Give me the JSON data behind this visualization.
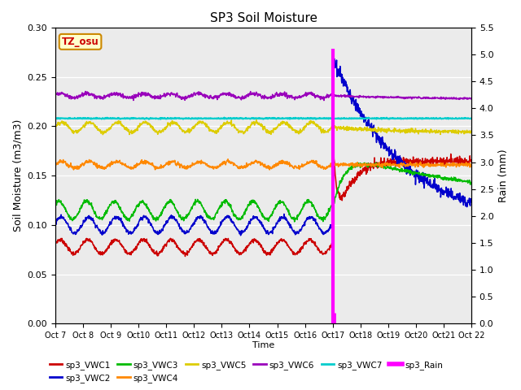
{
  "title": "SP3 Soil Moisture",
  "ylabel_left": "Soil Moisture (m3/m3)",
  "ylabel_right": "Rain (mm)",
  "xlabel": "Time",
  "ylim_left": [
    0.0,
    0.3
  ],
  "ylim_right": [
    0.0,
    5.5
  ],
  "bg_color": "#ebebeb",
  "annotation_box": {
    "text": "TZ_osu",
    "color": "#cc0000",
    "bg": "#ffffcc",
    "border": "#cc8800"
  },
  "colors": {
    "VWC1": "#cc0000",
    "VWC2": "#0000cc",
    "VWC3": "#00bb00",
    "VWC4": "#ff8800",
    "VWC5": "#ddcc00",
    "VWC6": "#9900bb",
    "VWC7": "#00cccc",
    "Rain": "#ff00ff"
  },
  "rain_day": 10,
  "tick_labels": [
    "Oct 7",
    "Oct 8",
    "Oct 9",
    "Oct10",
    "Oct11",
    "Oct12",
    "Oct13",
    "Oct14",
    "Oct15",
    "Oct16",
    "Oct17",
    "Oct18",
    "Oct19",
    "Oct20",
    "Oct21",
    "Oct 22"
  ],
  "yticks_left": [
    0.0,
    0.05,
    0.1,
    0.15,
    0.2,
    0.25,
    0.3
  ],
  "yticks_right": [
    0.0,
    0.5,
    1.0,
    1.5,
    2.0,
    2.5,
    3.0,
    3.5,
    4.0,
    4.5,
    5.0,
    5.5
  ],
  "vwc1_base": 0.078,
  "vwc2_base": 0.1,
  "vwc3_base": 0.115,
  "vwc4_base": 0.161,
  "vwc5_base": 0.199,
  "vwc6_base": 0.231,
  "vwc7_base": 0.208
}
